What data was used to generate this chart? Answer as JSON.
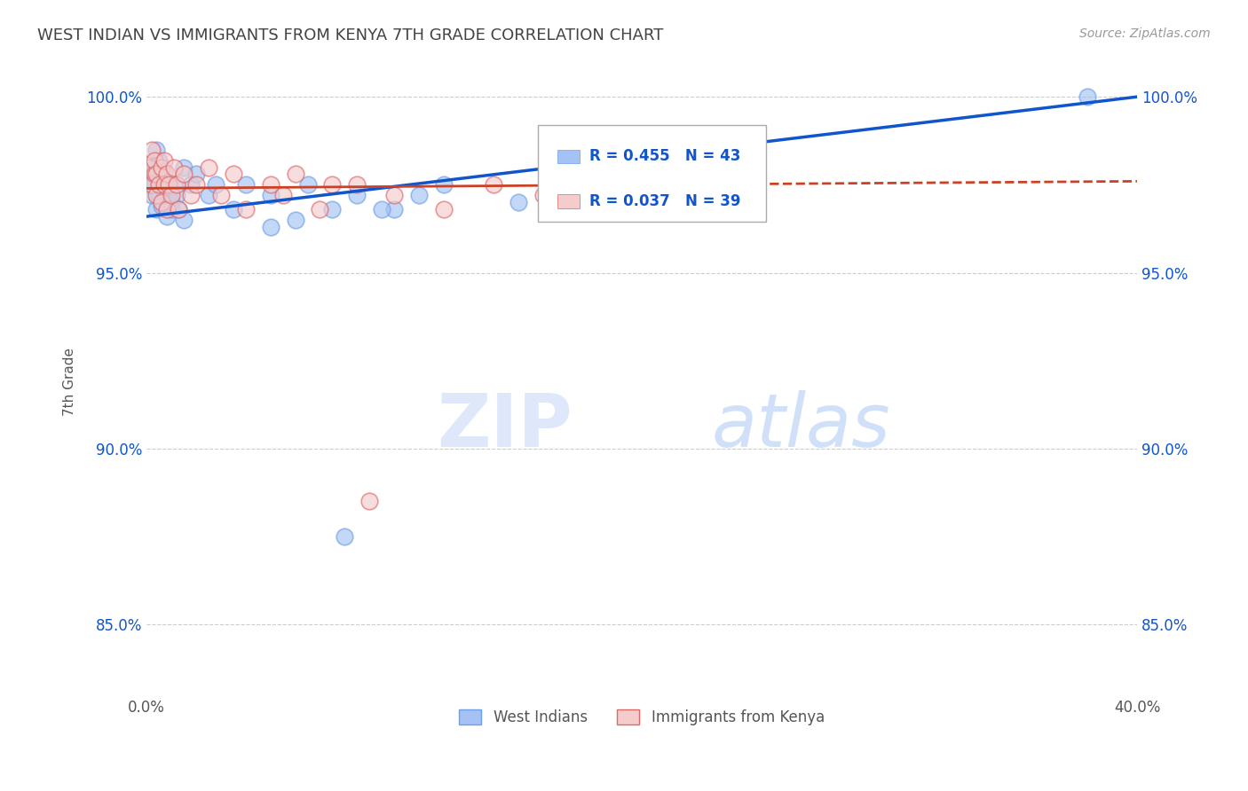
{
  "title": "WEST INDIAN VS IMMIGRANTS FROM KENYA 7TH GRADE CORRELATION CHART",
  "source_text": "Source: ZipAtlas.com",
  "ylabel": "7th Grade",
  "xlim": [
    0.0,
    0.4
  ],
  "ylim": [
    0.83,
    1.008
  ],
  "xticks": [
    0.0,
    0.1,
    0.2,
    0.3,
    0.4
  ],
  "xtick_labels": [
    "0.0%",
    "",
    "",
    "",
    "40.0%"
  ],
  "yticks": [
    0.85,
    0.9,
    0.95,
    1.0
  ],
  "ytick_labels": [
    "85.0%",
    "90.0%",
    "95.0%",
    "100.0%"
  ],
  "blue_R": 0.455,
  "blue_N": 43,
  "pink_R": 0.037,
  "pink_N": 39,
  "blue_color": "#a4c2f4",
  "pink_color": "#f4cccc",
  "blue_dot_edge": "#6d9eeb",
  "pink_dot_edge": "#e06666",
  "blue_trend_color": "#1155cc",
  "pink_trend_color": "#cc4125",
  "legend_label_blue": "West Indians",
  "legend_label_pink": "Immigrants from Kenya",
  "watermark_zip": "ZIP",
  "watermark_atlas": "atlas",
  "title_color": "#434343",
  "source_color": "#999999",
  "grid_color": "#cccccc",
  "blue_x": [
    0.001,
    0.002,
    0.002,
    0.003,
    0.003,
    0.004,
    0.004,
    0.005,
    0.005,
    0.006,
    0.006,
    0.007,
    0.007,
    0.008,
    0.008,
    0.009,
    0.01,
    0.01,
    0.011,
    0.012,
    0.013,
    0.015,
    0.015,
    0.018,
    0.02,
    0.025,
    0.028,
    0.035,
    0.04,
    0.05,
    0.065,
    0.075,
    0.085,
    0.1,
    0.12,
    0.15,
    0.06,
    0.08,
    0.095,
    0.11,
    0.05,
    0.38,
    0.24
  ],
  "blue_y": [
    0.975,
    0.978,
    0.972,
    0.975,
    0.98,
    0.968,
    0.985,
    0.972,
    0.982,
    0.975,
    0.969,
    0.973,
    0.979,
    0.966,
    0.975,
    0.972,
    0.97,
    0.968,
    0.975,
    0.972,
    0.968,
    0.98,
    0.965,
    0.975,
    0.978,
    0.972,
    0.975,
    0.968,
    0.975,
    0.972,
    0.975,
    0.968,
    0.972,
    0.968,
    0.975,
    0.97,
    0.965,
    0.875,
    0.968,
    0.972,
    0.963,
    1.0,
    0.972
  ],
  "pink_x": [
    0.001,
    0.002,
    0.002,
    0.003,
    0.003,
    0.004,
    0.004,
    0.005,
    0.006,
    0.006,
    0.007,
    0.007,
    0.008,
    0.008,
    0.009,
    0.01,
    0.011,
    0.012,
    0.013,
    0.015,
    0.018,
    0.02,
    0.025,
    0.03,
    0.035,
    0.04,
    0.05,
    0.055,
    0.06,
    0.07,
    0.085,
    0.1,
    0.12,
    0.14,
    0.16,
    0.2,
    0.23,
    0.09,
    0.075
  ],
  "pink_y": [
    0.98,
    0.985,
    0.975,
    0.978,
    0.982,
    0.972,
    0.978,
    0.975,
    0.97,
    0.98,
    0.975,
    0.982,
    0.968,
    0.978,
    0.975,
    0.972,
    0.98,
    0.975,
    0.968,
    0.978,
    0.972,
    0.975,
    0.98,
    0.972,
    0.978,
    0.968,
    0.975,
    0.972,
    0.978,
    0.968,
    0.975,
    0.972,
    0.968,
    0.975,
    0.972,
    0.975,
    0.968,
    0.885,
    0.975
  ],
  "blue_trend_x0": 0.0,
  "blue_trend_y0": 0.966,
  "blue_trend_x1": 0.4,
  "blue_trend_y1": 1.0,
  "pink_trend_x0": 0.0,
  "pink_trend_y0": 0.974,
  "pink_trend_x1": 0.4,
  "pink_trend_y1": 0.976
}
